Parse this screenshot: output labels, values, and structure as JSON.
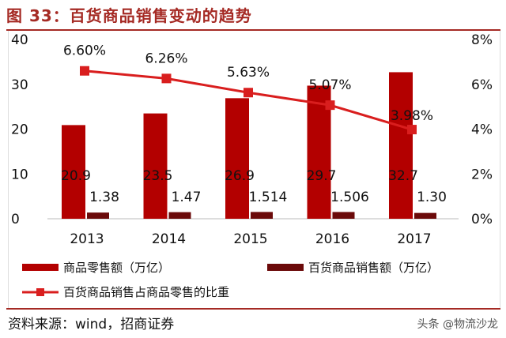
{
  "title": "图 33：百货商品销售变动的趋势",
  "source": "资料来源：wind，招商证券",
  "watermark": "头条 @物流沙龙",
  "colors": {
    "retail": "#b30000",
    "dept": "#6b0a0a",
    "line": "#d91e1e",
    "rule": "#a52a24"
  },
  "chart_data": {
    "type": "bar+line",
    "categories": [
      "2013",
      "2014",
      "2015",
      "2016",
      "2017"
    ],
    "series": [
      {
        "name": "商品零售额（万亿）",
        "type": "bar",
        "axis": "left",
        "values": [
          20.9,
          23.5,
          26.9,
          29.7,
          32.7
        ],
        "labels": [
          "20.9",
          "23.5",
          "26.9",
          "29.7",
          "32.7"
        ]
      },
      {
        "name": "百货商品销售额（万亿）",
        "type": "bar",
        "axis": "left",
        "values": [
          1.38,
          1.47,
          1.514,
          1.506,
          1.3
        ],
        "labels": [
          "1.38",
          "1.47",
          "1.514",
          "1.506",
          "1.30"
        ]
      },
      {
        "name": "百货商品销售占商品零售的比重",
        "type": "line",
        "axis": "right",
        "values": [
          6.6,
          6.26,
          5.63,
          5.07,
          3.98
        ],
        "labels": [
          "6.60%",
          "6.26%",
          "5.63%",
          "5.07%",
          "3.98%"
        ]
      }
    ],
    "left_axis": {
      "ylim": [
        0,
        40
      ],
      "ticks": [
        "0",
        "10",
        "20",
        "30",
        "40"
      ]
    },
    "right_axis": {
      "ylim": [
        0,
        8
      ],
      "ticks": [
        "0%",
        "2%",
        "4%",
        "6%",
        "8%"
      ]
    },
    "grid": false,
    "legend": "bottom"
  }
}
